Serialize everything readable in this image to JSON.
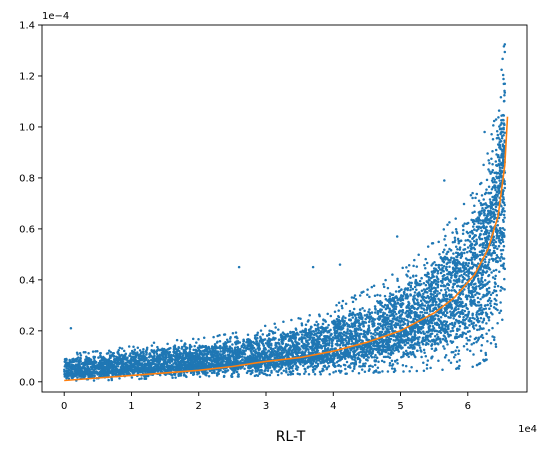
{
  "chart_data": {
    "type": "scatter",
    "title": "",
    "xlabel": "RL-T",
    "ylabel": "",
    "x_offset_label": "1e4",
    "y_offset_label": "1e−4",
    "xlim": [
      -3300,
      68800
    ],
    "ylim": [
      -4e-06,
      0.00014
    ],
    "x_ticks": [
      {
        "value": 0,
        "label": "0"
      },
      {
        "value": 10000,
        "label": "1"
      },
      {
        "value": 20000,
        "label": "2"
      },
      {
        "value": 30000,
        "label": "3"
      },
      {
        "value": 40000,
        "label": "4"
      },
      {
        "value": 50000,
        "label": "5"
      },
      {
        "value": 60000,
        "label": "6"
      }
    ],
    "y_ticks": [
      {
        "value": 0.0,
        "label": "0.0"
      },
      {
        "value": 2e-05,
        "label": "0.2"
      },
      {
        "value": 4e-05,
        "label": "0.4"
      },
      {
        "value": 6e-05,
        "label": "0.6"
      },
      {
        "value": 8e-05,
        "label": "0.8"
      },
      {
        "value": 0.0001,
        "label": "1.0"
      },
      {
        "value": 0.00012,
        "label": "1.2"
      },
      {
        "value": 0.00014,
        "label": "1.4"
      }
    ],
    "grid": false,
    "colors": {
      "scatter": "#1f77b4",
      "trend": "#ff7f0e"
    },
    "series": [
      {
        "type": "scatter",
        "description_points": "dense cloud of points; approximate envelope by x",
        "envelope": [
          {
            "x": 0,
            "low": 5e-07,
            "mid": 3e-06,
            "high": 1.1e-05
          },
          {
            "x": 5000,
            "low": 5e-07,
            "mid": 4.5e-06,
            "high": 1.2e-05
          },
          {
            "x": 10000,
            "low": 1e-06,
            "mid": 5.5e-06,
            "high": 1.4e-05
          },
          {
            "x": 15000,
            "low": 1.5e-06,
            "mid": 6e-06,
            "high": 1.6e-05
          },
          {
            "x": 20000,
            "low": 2e-06,
            "mid": 6.5e-06,
            "high": 1.7e-05
          },
          {
            "x": 25000,
            "low": 2e-06,
            "mid": 7.5e-06,
            "high": 1.9e-05
          },
          {
            "x": 30000,
            "low": 2.5e-06,
            "mid": 8.5e-06,
            "high": 2.2e-05
          },
          {
            "x": 35000,
            "low": 3e-06,
            "mid": 1e-05,
            "high": 2.5e-05
          },
          {
            "x": 40000,
            "low": 3e-06,
            "mid": 1.2e-05,
            "high": 3e-05
          },
          {
            "x": 45000,
            "low": 3.5e-06,
            "mid": 1.5e-05,
            "high": 3.6e-05
          },
          {
            "x": 50000,
            "low": 4e-06,
            "mid": 2e-05,
            "high": 4.4e-05
          },
          {
            "x": 55000,
            "low": 4.5e-06,
            "mid": 2.7e-05,
            "high": 5.5e-05
          },
          {
            "x": 58000,
            "low": 5e-06,
            "mid": 3.3e-05,
            "high": 6.5e-05
          },
          {
            "x": 61000,
            "low": 6e-06,
            "mid": 4e-05,
            "high": 7.5e-05
          },
          {
            "x": 63000,
            "low": 9e-06,
            "mid": 5.2e-05,
            "high": 9e-05
          },
          {
            "x": 64500,
            "low": 1.5e-05,
            "mid": 7e-05,
            "high": 0.00011
          },
          {
            "x": 65500,
            "low": 3e-05,
            "mid": 9e-05,
            "high": 0.000135
          }
        ],
        "outliers": [
          {
            "x": 26000,
            "y": 4.5e-05
          },
          {
            "x": 37000,
            "y": 4.5e-05
          },
          {
            "x": 41000,
            "y": 4.6e-05
          },
          {
            "x": 49500,
            "y": 5.7e-05
          },
          {
            "x": 56500,
            "y": 7.9e-05
          },
          {
            "x": 1000,
            "y": 2.1e-05
          },
          {
            "x": 62500,
            "y": 9.8e-05
          }
        ]
      },
      {
        "type": "line",
        "points": [
          {
            "x": 0,
            "y": 5e-07
          },
          {
            "x": 5000,
            "y": 1.5e-06
          },
          {
            "x": 10000,
            "y": 2.5e-06
          },
          {
            "x": 15000,
            "y": 3.5e-06
          },
          {
            "x": 20000,
            "y": 4.5e-06
          },
          {
            "x": 25000,
            "y": 6e-06
          },
          {
            "x": 30000,
            "y": 8e-06
          },
          {
            "x": 35000,
            "y": 9.5e-06
          },
          {
            "x": 40000,
            "y": 1.2e-05
          },
          {
            "x": 45000,
            "y": 1.55e-05
          },
          {
            "x": 50000,
            "y": 2e-05
          },
          {
            "x": 55000,
            "y": 2.7e-05
          },
          {
            "x": 58000,
            "y": 3.3e-05
          },
          {
            "x": 61000,
            "y": 4.2e-05
          },
          {
            "x": 63000,
            "y": 5.2e-05
          },
          {
            "x": 64500,
            "y": 6.5e-05
          },
          {
            "x": 65500,
            "y": 8.5e-05
          },
          {
            "x": 65900,
            "y": 0.000104
          }
        ]
      }
    ]
  }
}
